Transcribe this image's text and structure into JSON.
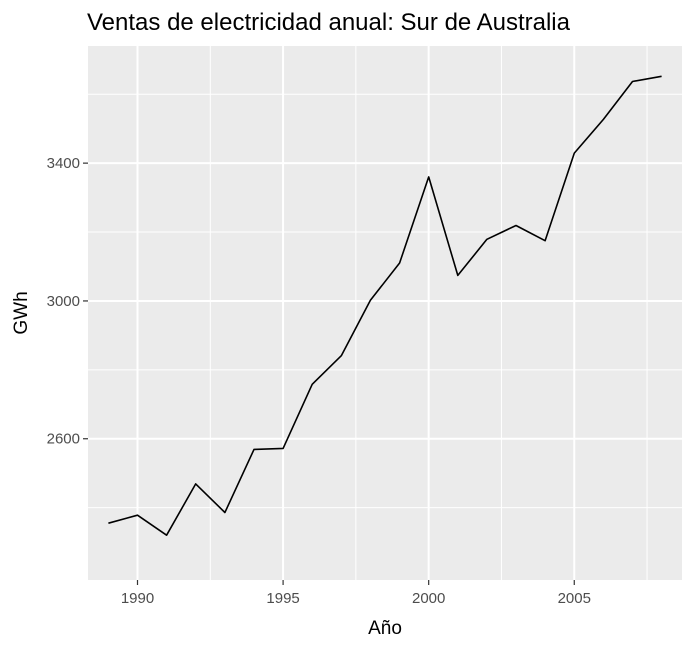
{
  "chart_data": {
    "type": "line",
    "title": "Ventas de electricidad anual: Sur de Australia",
    "xlabel": "Año",
    "ylabel": "GWh",
    "xlim": [
      1988.3,
      2008.7
    ],
    "ylim": [
      2190,
      3740
    ],
    "x_ticks": [
      1990,
      1995,
      2000,
      2005
    ],
    "x_minor_ticks": [
      1992.5,
      1997.5,
      2002.5,
      2007.5
    ],
    "y_ticks": [
      2600,
      3000,
      3400
    ],
    "y_minor_ticks": [
      2400,
      2800,
      3200,
      3600
    ],
    "grid": true,
    "colors": {
      "panel": "#EBEBEB",
      "grid": "#FFFFFF",
      "line": "#000000",
      "tick": "#333333"
    },
    "series": [
      {
        "x": [
          1989,
          1990,
          1991,
          1992,
          1993,
          1994,
          1995,
          1996,
          1997,
          1998,
          1999,
          2000,
          2001,
          2002,
          2003,
          2004,
          2005,
          2006,
          2007,
          2008
        ],
        "values": [
          2355,
          2378,
          2320,
          2469,
          2386,
          2569,
          2572,
          2758,
          2841,
          3002,
          3110,
          3360,
          3074,
          3179,
          3219,
          3175,
          3429,
          3527,
          3637,
          3652
        ]
      }
    ]
  }
}
